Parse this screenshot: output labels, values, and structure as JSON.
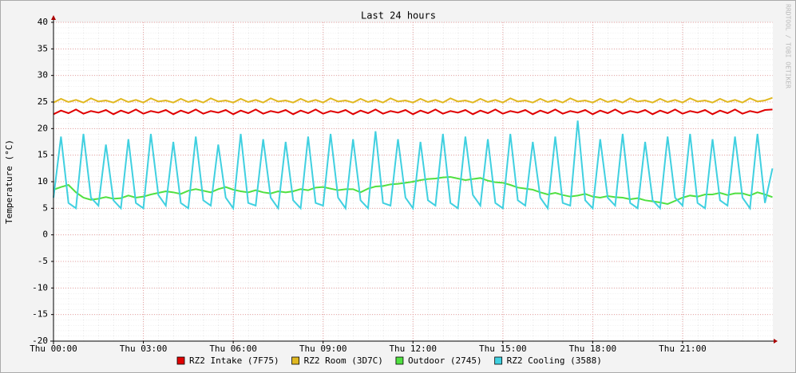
{
  "chart_data": {
    "type": "line",
    "title": "Last 24 hours",
    "y_label": "Temperature (°C)",
    "watermark": "RRDTOOL / TOBI OETIKER",
    "xlim": [
      0,
      24
    ],
    "xticks": [
      {
        "value": 0,
        "label": "Thu 00:00"
      },
      {
        "value": 3,
        "label": "Thu 03:00"
      },
      {
        "value": 6,
        "label": "Thu 06:00"
      },
      {
        "value": 9,
        "label": "Thu 09:00"
      },
      {
        "value": 12,
        "label": "Thu 12:00"
      },
      {
        "value": 15,
        "label": "Thu 15:00"
      },
      {
        "value": 18,
        "label": "Thu 18:00"
      },
      {
        "value": 21,
        "label": "Thu 21:00"
      }
    ],
    "ylim": [
      -20,
      40
    ],
    "yticks": [
      -20,
      -15,
      -10,
      -5,
      0,
      5,
      10,
      15,
      20,
      25,
      30,
      35,
      40
    ],
    "grid": true,
    "x": [
      0,
      0.25,
      0.5,
      0.75,
      1,
      1.25,
      1.5,
      1.75,
      2,
      2.25,
      2.5,
      2.75,
      3,
      3.25,
      3.5,
      3.75,
      4,
      4.25,
      4.5,
      4.75,
      5,
      5.25,
      5.5,
      5.75,
      6,
      6.25,
      6.5,
      6.75,
      7,
      7.25,
      7.5,
      7.75,
      8,
      8.25,
      8.5,
      8.75,
      9,
      9.25,
      9.5,
      9.75,
      10,
      10.25,
      10.5,
      10.75,
      11,
      11.25,
      11.5,
      11.75,
      12,
      12.25,
      12.5,
      12.75,
      13,
      13.25,
      13.5,
      13.75,
      14,
      14.25,
      14.5,
      14.75,
      15,
      15.25,
      15.5,
      15.75,
      16,
      16.25,
      16.5,
      16.75,
      17,
      17.25,
      17.5,
      17.75,
      18,
      18.25,
      18.5,
      18.75,
      19,
      19.25,
      19.5,
      19.75,
      20,
      20.25,
      20.5,
      20.75,
      21,
      21.25,
      21.5,
      21.75,
      22,
      22.25,
      22.5,
      22.75,
      23,
      23.25,
      23.5,
      23.75,
      24
    ],
    "series": [
      {
        "name": "RZ2 Intake (7F75)",
        "color": "#e00000",
        "values": [
          22.7,
          23.4,
          22.9,
          23.6,
          22.8,
          23.3,
          23.0,
          23.5,
          22.7,
          23.4,
          22.9,
          23.6,
          22.8,
          23.3,
          23.0,
          23.5,
          22.7,
          23.4,
          22.9,
          23.6,
          22.8,
          23.3,
          23.0,
          23.5,
          22.7,
          23.4,
          22.9,
          23.6,
          22.8,
          23.3,
          23.0,
          23.5,
          22.7,
          23.4,
          22.9,
          23.6,
          22.8,
          23.3,
          23.0,
          23.5,
          22.7,
          23.4,
          22.9,
          23.6,
          22.8,
          23.3,
          23.0,
          23.5,
          22.7,
          23.4,
          22.9,
          23.6,
          22.8,
          23.3,
          23.0,
          23.5,
          22.7,
          23.4,
          22.9,
          23.6,
          22.8,
          23.3,
          23.0,
          23.5,
          22.7,
          23.4,
          22.9,
          23.6,
          22.8,
          23.3,
          23.0,
          23.5,
          22.7,
          23.4,
          22.9,
          23.6,
          22.8,
          23.3,
          23.0,
          23.5,
          22.7,
          23.4,
          22.9,
          23.6,
          22.8,
          23.3,
          23.0,
          23.5,
          22.7,
          23.4,
          22.9,
          23.6,
          22.8,
          23.3,
          23.0,
          23.5,
          23.6
        ]
      },
      {
        "name": "RZ2 Room (3D7C)",
        "color": "#e0b820",
        "values": [
          24.9,
          25.6,
          25.0,
          25.4,
          24.9,
          25.7,
          25.1,
          25.3,
          24.9,
          25.6,
          25.0,
          25.4,
          24.9,
          25.7,
          25.1,
          25.3,
          24.9,
          25.6,
          25.0,
          25.4,
          24.9,
          25.7,
          25.1,
          25.3,
          24.9,
          25.6,
          25.0,
          25.4,
          24.9,
          25.7,
          25.1,
          25.3,
          24.9,
          25.6,
          25.0,
          25.4,
          24.9,
          25.7,
          25.1,
          25.3,
          24.9,
          25.6,
          25.0,
          25.4,
          24.9,
          25.7,
          25.1,
          25.3,
          24.9,
          25.6,
          25.0,
          25.4,
          24.9,
          25.7,
          25.1,
          25.3,
          24.9,
          25.6,
          25.0,
          25.4,
          24.9,
          25.7,
          25.1,
          25.3,
          24.9,
          25.6,
          25.0,
          25.4,
          24.9,
          25.7,
          25.1,
          25.3,
          24.9,
          25.6,
          25.0,
          25.4,
          24.9,
          25.7,
          25.1,
          25.3,
          24.9,
          25.6,
          25.0,
          25.4,
          24.9,
          25.7,
          25.1,
          25.3,
          24.9,
          25.6,
          25.0,
          25.4,
          24.9,
          25.7,
          25.1,
          25.3,
          25.8
        ]
      },
      {
        "name": "Outdoor (2745)",
        "color": "#50e040",
        "values": [
          8.5,
          9.0,
          9.4,
          8.0,
          7.0,
          6.6,
          6.8,
          7.1,
          6.8,
          6.9,
          7.4,
          7.0,
          7.2,
          7.6,
          7.9,
          8.2,
          8.0,
          7.7,
          8.3,
          8.6,
          8.3,
          8.0,
          8.6,
          9.0,
          8.5,
          8.2,
          8.0,
          8.4,
          8.0,
          7.8,
          8.2,
          8.0,
          8.2,
          8.6,
          8.4,
          8.9,
          9.0,
          8.7,
          8.4,
          8.6,
          8.6,
          8.0,
          8.7,
          9.1,
          9.2,
          9.5,
          9.6,
          9.8,
          10.0,
          10.3,
          10.5,
          10.6,
          10.8,
          10.9,
          10.6,
          10.3,
          10.5,
          10.7,
          10.2,
          9.9,
          9.8,
          9.4,
          8.9,
          8.7,
          8.5,
          8.0,
          7.6,
          7.9,
          7.5,
          7.2,
          7.4,
          7.7,
          7.2,
          7.0,
          7.3,
          7.1,
          7.0,
          6.7,
          6.9,
          6.5,
          6.3,
          6.1,
          5.8,
          6.4,
          7.0,
          7.4,
          7.2,
          7.6,
          7.6,
          7.9,
          7.5,
          7.8,
          7.8,
          7.4,
          8.0,
          7.6,
          7.1
        ]
      },
      {
        "name": "RZ2 Cooling (3588)",
        "color": "#40d0e0",
        "values": [
          7.0,
          18.5,
          6.0,
          5.0,
          19.0,
          7.0,
          5.5,
          17.0,
          6.5,
          5.0,
          18.0,
          6.0,
          5.0,
          19.0,
          7.5,
          5.5,
          17.5,
          6.0,
          5.0,
          18.5,
          6.5,
          5.5,
          17.0,
          7.0,
          5.0,
          19.0,
          6.0,
          5.5,
          18.0,
          7.0,
          5.0,
          17.5,
          6.5,
          5.0,
          18.5,
          6.0,
          5.5,
          19.0,
          7.0,
          5.0,
          18.0,
          6.5,
          5.0,
          19.5,
          6.0,
          5.5,
          18.0,
          7.0,
          5.0,
          17.5,
          6.5,
          5.5,
          19.0,
          6.0,
          5.0,
          18.5,
          7.5,
          5.5,
          18.0,
          6.0,
          5.0,
          19.0,
          6.5,
          5.5,
          17.5,
          7.0,
          5.0,
          18.5,
          6.0,
          5.5,
          21.5,
          6.5,
          5.0,
          18.0,
          7.0,
          5.5,
          19.0,
          6.0,
          5.0,
          17.5,
          6.5,
          5.0,
          18.5,
          7.0,
          5.5,
          19.0,
          6.0,
          5.0,
          18.0,
          6.5,
          5.5,
          18.5,
          7.0,
          5.0,
          19.0,
          6.0,
          12.5
        ]
      }
    ]
  }
}
